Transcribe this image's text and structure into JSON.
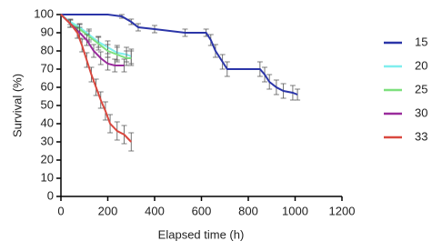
{
  "chart_data": {
    "type": "line",
    "x_label": "Elapsed time (h)",
    "y_label": "Survival (%)",
    "xlim": [
      0,
      1200
    ],
    "xticks": [
      0,
      200,
      400,
      600,
      800,
      1000,
      1200
    ],
    "ylim": [
      0,
      100
    ],
    "yticks": [
      0,
      10,
      20,
      30,
      40,
      50,
      60,
      70,
      80,
      90,
      100
    ],
    "legend": "right",
    "series": [
      {
        "name": "15",
        "color": "#2b35a8",
        "x": [
          0,
          200,
          260,
          300,
          330,
          400,
          530,
          620,
          640,
          660,
          690,
          710,
          850,
          870,
          890,
          920,
          950,
          990,
          1010
        ],
        "values": [
          100,
          100,
          99,
          96,
          93,
          92,
          90,
          90,
          86,
          80,
          74,
          70,
          70,
          67,
          63,
          60,
          58,
          57,
          56
        ],
        "errors": [
          0,
          0,
          1,
          1.5,
          2,
          2,
          2,
          2,
          3,
          3.5,
          4,
          4,
          4,
          4,
          4,
          4,
          4,
          4,
          3
        ]
      },
      {
        "name": "20",
        "color": "#80eeee",
        "x": [
          0,
          40,
          80,
          120,
          160,
          200,
          240,
          280,
          300
        ],
        "values": [
          100,
          96,
          93,
          89,
          85,
          82,
          79,
          78,
          77
        ],
        "errors": [
          0,
          1.5,
          2,
          3,
          3,
          3.5,
          4,
          4,
          4
        ]
      },
      {
        "name": "25",
        "color": "#7ee07e",
        "x": [
          0,
          40,
          80,
          120,
          160,
          200,
          240,
          280,
          300
        ],
        "values": [
          100,
          95,
          92,
          88,
          84,
          80,
          78,
          76,
          76
        ],
        "errors": [
          0,
          2,
          2.5,
          3,
          3.5,
          3.5,
          4,
          4,
          4
        ]
      },
      {
        "name": "30",
        "color": "#9a2c9c",
        "x": [
          0,
          40,
          80,
          110,
          140,
          170,
          200,
          230,
          270
        ],
        "values": [
          100,
          95,
          90,
          86,
          80,
          76,
          73,
          72,
          72
        ],
        "errors": [
          0,
          2,
          3,
          3,
          3.5,
          3.5,
          3.5,
          3.5,
          3.5
        ]
      },
      {
        "name": "33",
        "color": "#d9483f",
        "x": [
          0,
          40,
          70,
          90,
          110,
          130,
          150,
          170,
          190,
          210,
          240,
          270,
          300
        ],
        "values": [
          100,
          95,
          90,
          83,
          75,
          67,
          60,
          53,
          47,
          40,
          36,
          34,
          30
        ],
        "errors": [
          0,
          2,
          3,
          3.5,
          4,
          4,
          4.5,
          4.5,
          5,
          5,
          5,
          5,
          5
        ]
      }
    ]
  }
}
